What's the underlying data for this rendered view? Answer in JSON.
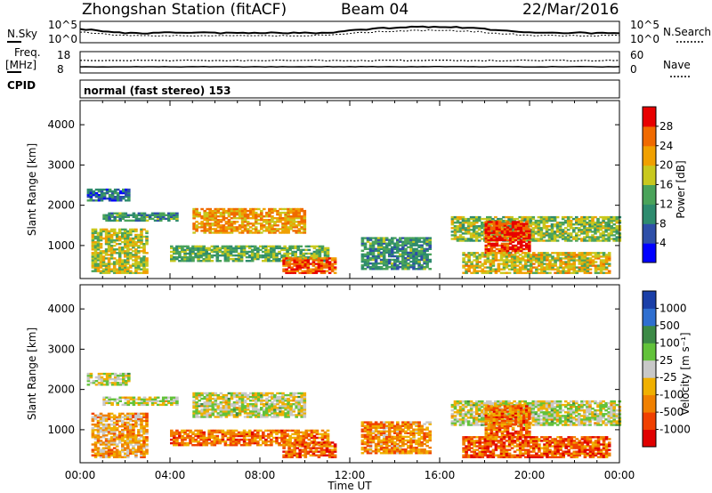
{
  "header": {
    "station": "Zhongshan Station (fitACF)",
    "beam": "Beam 04",
    "date": "22/Mar/2016"
  },
  "panels": {
    "nsky": {
      "label": "N.Sky",
      "top_tick": "10^5",
      "bottom_tick": "10^0",
      "right_label": "N.Search",
      "right_top_tick": "10^5",
      "right_bottom_tick": "10^0"
    },
    "freq": {
      "label_line1": "Freq.",
      "label_line2": "[MHz]",
      "top_tick": "18",
      "bottom_tick": "8",
      "right_label": "Nave",
      "right_top_tick": "60",
      "right_bottom_tick": "0"
    },
    "cpid": {
      "label": "CPID",
      "mode": "normal (fast stereo) 153"
    }
  },
  "colors": {
    "power_scale": [
      "#0000ff",
      "#2e4fa8",
      "#2e8b6e",
      "#4aa35a",
      "#c8c81e",
      "#f0a000",
      "#f06a00",
      "#e80000"
    ],
    "velocity_scale": [
      "#1a3fa8",
      "#2f6fd0",
      "#3c8a46",
      "#62c23a",
      "#c8c8c8",
      "#f0b000",
      "#f08000",
      "#f04000",
      "#e00000"
    ]
  },
  "chart_data": [
    {
      "type": "heatmap",
      "title": "",
      "ylabel": "Slant Range [km]",
      "xlabel": "",
      "ylim": [
        180,
        4600
      ],
      "xlim": [
        "00:00",
        "24:00"
      ],
      "y_ticks": [
        "1000",
        "2000",
        "3000",
        "4000"
      ],
      "x_ticks": [
        "00:00",
        "04:00",
        "08:00",
        "12:00",
        "16:00",
        "20:00",
        "00:00"
      ],
      "colorbar": {
        "label": "Power [dB]",
        "ticks": [
          "4",
          "8",
          "12",
          "16",
          "20",
          "24",
          "28"
        ],
        "range": [
          0,
          30
        ]
      },
      "blobs": [
        {
          "t0": 0.5,
          "t1": 3.0,
          "r0": 300,
          "r1": 1400,
          "level": 0.55
        },
        {
          "t0": 0.3,
          "t1": 2.2,
          "r0": 2100,
          "r1": 2400,
          "level": 0.25
        },
        {
          "t0": 1.0,
          "t1": 4.3,
          "r0": 1600,
          "r1": 1800,
          "level": 0.35
        },
        {
          "t0": 5.0,
          "t1": 10.0,
          "r0": 1300,
          "r1": 1900,
          "level": 0.7
        },
        {
          "t0": 4.0,
          "t1": 11.0,
          "r0": 600,
          "r1": 1000,
          "level": 0.45
        },
        {
          "t0": 9.0,
          "t1": 11.3,
          "r0": 300,
          "r1": 700,
          "level": 0.85
        },
        {
          "t0": 12.5,
          "t1": 15.5,
          "r0": 400,
          "r1": 1200,
          "level": 0.35
        },
        {
          "t0": 16.5,
          "t1": 24.0,
          "r0": 1100,
          "r1": 1700,
          "level": 0.5
        },
        {
          "t0": 18.0,
          "t1": 20.0,
          "r0": 800,
          "r1": 1600,
          "level": 0.9
        },
        {
          "t0": 17.0,
          "t1": 23.5,
          "r0": 300,
          "r1": 800,
          "level": 0.6
        }
      ]
    },
    {
      "type": "heatmap",
      "title": "",
      "ylabel": "Slant Range [km]",
      "xlabel": "Time UT",
      "ylim": [
        180,
        4600
      ],
      "xlim": [
        "00:00",
        "24:00"
      ],
      "y_ticks": [
        "1000",
        "2000",
        "3000",
        "4000"
      ],
      "x_ticks": [
        "00:00",
        "04:00",
        "08:00",
        "12:00",
        "16:00",
        "20:00",
        "00:00"
      ],
      "colorbar": {
        "label": "Velocity [m s⁻¹]",
        "ticks": [
          "1000",
          "500",
          "100",
          "25",
          "-25",
          "-100",
          "-500",
          "-1000"
        ],
        "range": [
          -1000,
          1000
        ]
      },
      "blobs": [
        {
          "t0": 0.5,
          "t1": 3.0,
          "r0": 300,
          "r1": 1400,
          "level": 0.65
        },
        {
          "t0": 0.3,
          "t1": 2.2,
          "r0": 2100,
          "r1": 2400,
          "level": 0.5
        },
        {
          "t0": 1.0,
          "t1": 4.3,
          "r0": 1600,
          "r1": 1800,
          "level": 0.5
        },
        {
          "t0": 5.0,
          "t1": 10.0,
          "r0": 1300,
          "r1": 1900,
          "level": 0.5
        },
        {
          "t0": 4.0,
          "t1": 11.0,
          "r0": 600,
          "r1": 1000,
          "level": 0.75
        },
        {
          "t0": 9.0,
          "t1": 11.3,
          "r0": 300,
          "r1": 700,
          "level": 0.8
        },
        {
          "t0": 12.5,
          "t1": 15.5,
          "r0": 400,
          "r1": 1200,
          "level": 0.7
        },
        {
          "t0": 16.5,
          "t1": 24.0,
          "r0": 1100,
          "r1": 1700,
          "level": 0.5
        },
        {
          "t0": 18.0,
          "t1": 20.0,
          "r0": 800,
          "r1": 1600,
          "level": 0.75
        },
        {
          "t0": 17.0,
          "t1": 23.5,
          "r0": 300,
          "r1": 800,
          "level": 0.8
        }
      ]
    }
  ]
}
